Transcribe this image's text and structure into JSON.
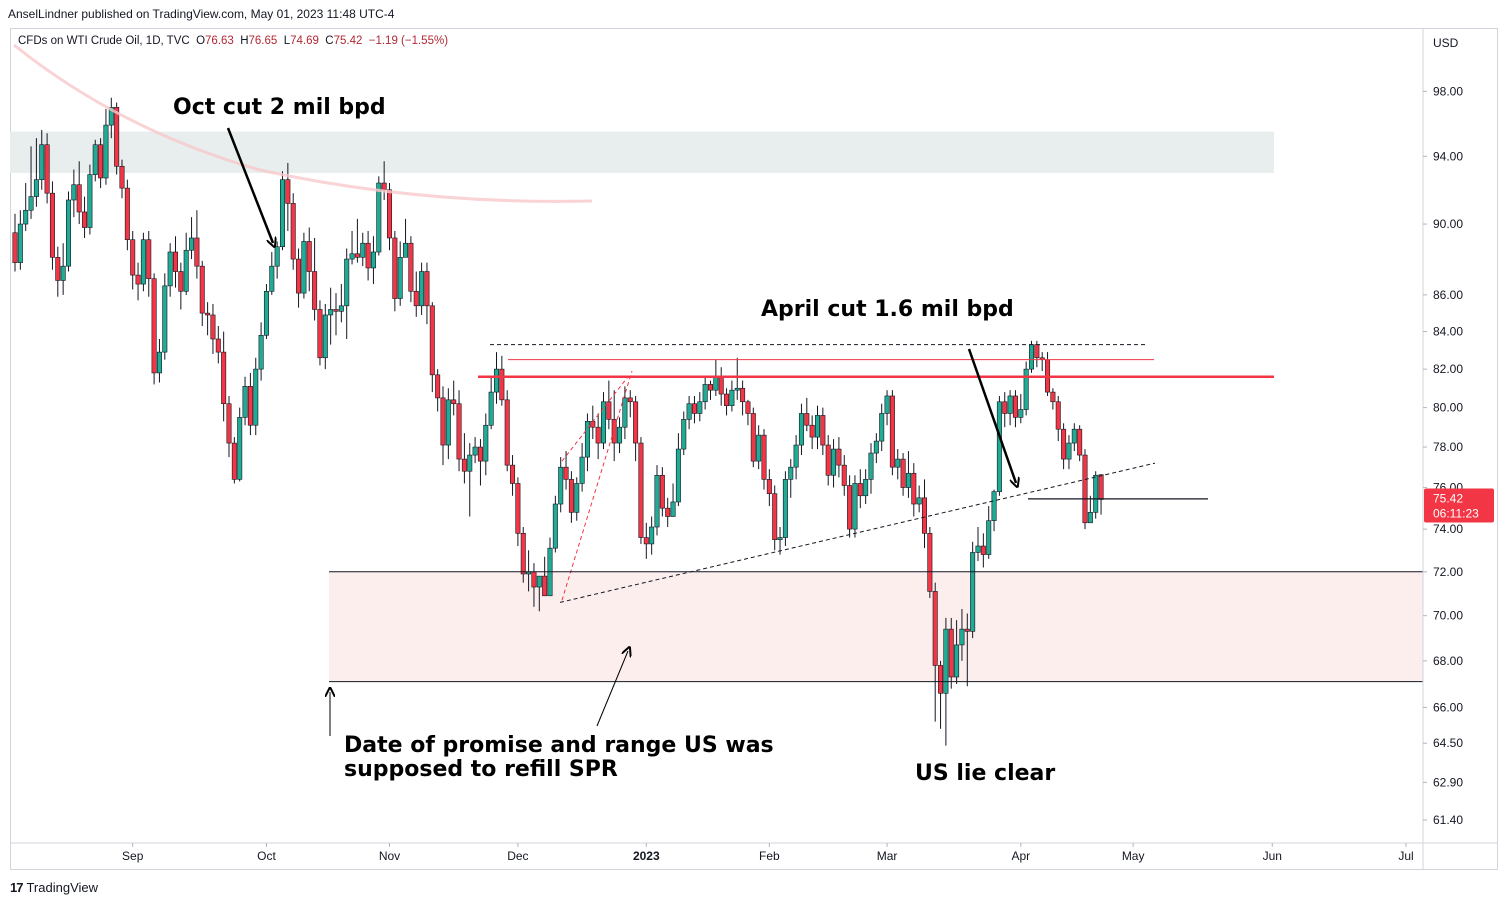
{
  "publisher": "AnselLindner published on TradingView.com, May 01, 2023 11:48 UTC-4",
  "legend": {
    "symbol": "CFDs on WTI Crude Oil, 1D, TVC",
    "open_label": "O",
    "open": "76.63",
    "high_label": "H",
    "high": "76.65",
    "low_label": "L",
    "low": "74.69",
    "close_label": "C",
    "close": "75.42",
    "change": "−1.19 (−1.55%)"
  },
  "footer": {
    "logo": "17",
    "brand": "TradingView"
  },
  "colors": {
    "up": "#22ab94",
    "down": "#f23645",
    "resistance": "#f23645",
    "supply_zone": "#e8eeee",
    "demand_zone": "#fdeeee"
  },
  "chart_data": {
    "type": "candlestick",
    "currency": "USD",
    "scale": "log",
    "price_ticks": [
      "98.00",
      "94.00",
      "90.00",
      "86.00",
      "84.00",
      "82.00",
      "80.00",
      "78.00",
      "76.00",
      "74.00",
      "72.00",
      "70.00",
      "68.00",
      "66.00",
      "64.50",
      "62.90",
      "61.40"
    ],
    "time_ticks": [
      "Sep",
      "Oct",
      "Nov",
      "Dec",
      "2023",
      "Feb",
      "Mar",
      "Apr",
      "May",
      "Jun",
      "Jul"
    ],
    "last_price": {
      "value": "75.42",
      "countdown": "06:11:23"
    },
    "ylim": [
      60.5,
      102
    ],
    "candles": [
      [
        89.5,
        87.8,
        90.6,
        87.3
      ],
      [
        87.8,
        90.0,
        90.8,
        87.4
      ],
      [
        90.0,
        90.8,
        92.4,
        89.6
      ],
      [
        90.8,
        91.6,
        94.6,
        90.3
      ],
      [
        91.6,
        92.6,
        95.1,
        91.0
      ],
      [
        92.6,
        94.7,
        95.6,
        92.0
      ],
      [
        94.7,
        91.8,
        95.4,
        91.2
      ],
      [
        91.8,
        88.1,
        92.5,
        87.4
      ],
      [
        88.1,
        86.8,
        88.7,
        85.9
      ],
      [
        86.8,
        87.6,
        88.9,
        86.0
      ],
      [
        87.6,
        91.4,
        91.9,
        87.3
      ],
      [
        91.4,
        92.3,
        93.2,
        90.4
      ],
      [
        92.3,
        90.7,
        93.7,
        90.0
      ],
      [
        90.7,
        89.8,
        91.6,
        89.2
      ],
      [
        89.8,
        92.9,
        93.5,
        89.4
      ],
      [
        92.9,
        94.7,
        95.0,
        92.5
      ],
      [
        94.7,
        92.7,
        95.1,
        92.1
      ],
      [
        92.7,
        95.9,
        96.9,
        92.3
      ],
      [
        95.9,
        97.0,
        97.6,
        95.1
      ],
      [
        97.0,
        93.4,
        97.3,
        92.9
      ],
      [
        93.4,
        92.1,
        93.8,
        91.5
      ],
      [
        92.1,
        89.1,
        92.6,
        88.5
      ],
      [
        89.1,
        87.1,
        89.6,
        86.3
      ],
      [
        87.1,
        86.6,
        87.8,
        85.7
      ],
      [
        86.6,
        89.1,
        89.5,
        86.2
      ],
      [
        89.1,
        86.9,
        89.6,
        85.9
      ],
      [
        86.9,
        81.8,
        87.2,
        81.2
      ],
      [
        81.8,
        82.9,
        83.6,
        81.3
      ],
      [
        82.9,
        86.5,
        87.2,
        82.5
      ],
      [
        86.5,
        88.4,
        88.9,
        85.9
      ],
      [
        88.4,
        87.3,
        89.3,
        86.4
      ],
      [
        87.3,
        86.2,
        87.8,
        85.2
      ],
      [
        86.2,
        88.5,
        89.5,
        86.0
      ],
      [
        88.5,
        89.2,
        90.4,
        88.0
      ],
      [
        89.2,
        87.6,
        90.8,
        86.9
      ],
      [
        87.6,
        85.0,
        87.9,
        84.3
      ],
      [
        85.0,
        84.9,
        85.6,
        83.8
      ],
      [
        84.9,
        83.6,
        85.5,
        82.8
      ],
      [
        83.6,
        82.9,
        84.3,
        82.3
      ],
      [
        82.9,
        80.2,
        84.0,
        79.3
      ],
      [
        80.2,
        78.2,
        80.6,
        77.5
      ],
      [
        78.2,
        76.4,
        78.5,
        76.2
      ],
      [
        76.4,
        79.5,
        80.0,
        76.3
      ],
      [
        79.5,
        81.1,
        81.6,
        79.1
      ],
      [
        81.1,
        79.1,
        81.8,
        78.6
      ],
      [
        79.1,
        82.0,
        82.6,
        78.6
      ],
      [
        82.0,
        83.8,
        84.5,
        81.4
      ],
      [
        83.8,
        86.2,
        86.6,
        83.6
      ],
      [
        86.2,
        87.6,
        88.4,
        86.0
      ],
      [
        87.6,
        88.7,
        89.0,
        86.9
      ],
      [
        88.7,
        92.6,
        93.1,
        88.5
      ],
      [
        92.6,
        91.2,
        93.6,
        89.6
      ],
      [
        91.2,
        88.0,
        91.8,
        87.4
      ],
      [
        88.0,
        86.1,
        88.6,
        85.3
      ],
      [
        86.1,
        89.0,
        89.5,
        85.8
      ],
      [
        89.0,
        87.3,
        89.8,
        86.2
      ],
      [
        87.3,
        85.2,
        89.2,
        84.6
      ],
      [
        85.2,
        82.6,
        85.7,
        82.2
      ],
      [
        82.6,
        84.9,
        85.5,
        82.0
      ],
      [
        84.9,
        85.2,
        86.4,
        83.3
      ],
      [
        85.2,
        85.1,
        86.1,
        83.8
      ],
      [
        85.1,
        85.4,
        86.6,
        84.5
      ],
      [
        85.4,
        88.0,
        88.6,
        83.6
      ],
      [
        88.0,
        88.3,
        89.6,
        87.7
      ],
      [
        88.3,
        88.1,
        90.3,
        87.8
      ],
      [
        88.1,
        88.9,
        89.5,
        87.6
      ],
      [
        88.9,
        87.5,
        89.6,
        86.8
      ],
      [
        87.5,
        88.4,
        89.3,
        86.6
      ],
      [
        88.4,
        92.4,
        92.8,
        88.2
      ],
      [
        92.4,
        92.0,
        93.7,
        91.4
      ],
      [
        92.0,
        89.2,
        92.4,
        88.5
      ],
      [
        89.2,
        85.8,
        89.6,
        85.1
      ],
      [
        85.8,
        88.1,
        89.0,
        85.4
      ],
      [
        88.1,
        88.9,
        90.3,
        88.1
      ],
      [
        88.9,
        86.2,
        89.3,
        85.6
      ],
      [
        86.2,
        85.4,
        87.3,
        84.8
      ],
      [
        85.4,
        87.3,
        87.8,
        84.9
      ],
      [
        87.3,
        85.4,
        87.8,
        84.4
      ],
      [
        85.4,
        81.7,
        85.6,
        80.8
      ],
      [
        81.7,
        80.5,
        82.0,
        79.8
      ],
      [
        80.5,
        78.1,
        81.1,
        77.1
      ],
      [
        78.1,
        80.4,
        81.0,
        77.4
      ],
      [
        80.4,
        80.2,
        81.4,
        79.6
      ],
      [
        80.2,
        77.4,
        80.9,
        76.8
      ],
      [
        77.4,
        76.8,
        78.7,
        76.2
      ],
      [
        76.8,
        77.6,
        78.2,
        74.6
      ],
      [
        77.6,
        78.0,
        78.5,
        77.2
      ],
      [
        78.0,
        77.3,
        78.4,
        76.1
      ],
      [
        77.3,
        79.1,
        79.7,
        76.6
      ],
      [
        79.1,
        80.8,
        81.6,
        78.9
      ],
      [
        80.8,
        82.0,
        82.9,
        80.2
      ],
      [
        82.0,
        80.4,
        82.7,
        80.1
      ],
      [
        80.4,
        77.1,
        80.9,
        76.8
      ],
      [
        77.1,
        76.2,
        77.6,
        75.6
      ],
      [
        76.2,
        73.8,
        76.5,
        73.2
      ],
      [
        73.8,
        71.9,
        74.1,
        71.5
      ],
      [
        71.9,
        72.0,
        73.0,
        71.1
      ],
      [
        72.0,
        71.3,
        72.4,
        70.4
      ],
      [
        71.3,
        71.8,
        71.8,
        70.2
      ],
      [
        71.8,
        70.9,
        72.7,
        70.9
      ],
      [
        70.9,
        73.1,
        73.6,
        71.1
      ],
      [
        73.1,
        75.2,
        75.6,
        72.9
      ],
      [
        75.2,
        77.0,
        77.5,
        74.8
      ],
      [
        77.0,
        76.4,
        77.8,
        75.9
      ],
      [
        76.4,
        74.8,
        76.8,
        74.3
      ],
      [
        74.8,
        76.2,
        76.5,
        74.4
      ],
      [
        76.2,
        77.5,
        78.2,
        75.8
      ],
      [
        77.5,
        79.3,
        79.7,
        76.8
      ],
      [
        79.3,
        79.0,
        80.1,
        78.4
      ],
      [
        79.0,
        78.2,
        79.7,
        77.4
      ],
      [
        78.2,
        80.3,
        80.8,
        77.9
      ],
      [
        80.3,
        79.4,
        81.4,
        78.9
      ],
      [
        79.4,
        78.2,
        80.9,
        77.3
      ],
      [
        78.2,
        79.0,
        79.5,
        77.7
      ],
      [
        79.0,
        80.5,
        81.1,
        78.4
      ],
      [
        80.5,
        80.3,
        80.9,
        79.5
      ],
      [
        80.3,
        78.2,
        80.6,
        77.3
      ],
      [
        78.2,
        73.6,
        78.5,
        73.3
      ],
      [
        73.6,
        73.3,
        74.3,
        72.6
      ],
      [
        73.3,
        74.1,
        74.6,
        72.8
      ],
      [
        74.1,
        76.6,
        77.1,
        73.7
      ],
      [
        76.6,
        75.0,
        77.0,
        74.6
      ],
      [
        75.0,
        74.6,
        75.5,
        74.1
      ],
      [
        74.6,
        75.3,
        76.2,
        74.6
      ],
      [
        75.3,
        77.9,
        78.7,
        75.1
      ],
      [
        77.9,
        79.4,
        79.8,
        77.6
      ],
      [
        79.4,
        80.2,
        80.6,
        78.9
      ],
      [
        80.2,
        79.7,
        80.6,
        79.2
      ],
      [
        79.7,
        80.3,
        80.8,
        79.3
      ],
      [
        80.3,
        81.2,
        81.6,
        79.9
      ],
      [
        81.2,
        80.9,
        81.4,
        80.4
      ],
      [
        80.9,
        81.6,
        82.5,
        80.6
      ],
      [
        81.6,
        80.7,
        82.1,
        80.1
      ],
      [
        80.7,
        80.1,
        81.0,
        79.6
      ],
      [
        80.1,
        80.9,
        81.4,
        79.8
      ],
      [
        80.9,
        81.0,
        82.6,
        80.4
      ],
      [
        81.0,
        80.3,
        81.4,
        79.6
      ],
      [
        80.3,
        79.7,
        80.4,
        79.1
      ],
      [
        79.7,
        77.3,
        80.0,
        77.0
      ],
      [
        77.3,
        78.6,
        79.1,
        76.9
      ],
      [
        78.6,
        76.4,
        78.9,
        75.9
      ],
      [
        76.4,
        75.7,
        76.9,
        75.1
      ],
      [
        75.7,
        73.5,
        76.1,
        73.0
      ],
      [
        73.5,
        73.6,
        74.1,
        72.8
      ],
      [
        73.6,
        76.4,
        76.8,
        73.2
      ],
      [
        76.4,
        77.0,
        77.4,
        75.5
      ],
      [
        77.0,
        78.1,
        78.6,
        76.4
      ],
      [
        78.1,
        79.7,
        80.2,
        77.6
      ],
      [
        79.7,
        79.1,
        80.5,
        78.8
      ],
      [
        79.1,
        78.5,
        79.6,
        77.9
      ],
      [
        78.5,
        79.6,
        80.1,
        77.9
      ],
      [
        79.6,
        78.1,
        80.0,
        77.6
      ],
      [
        78.1,
        76.6,
        78.6,
        76.1
      ],
      [
        76.6,
        77.9,
        78.4,
        76.0
      ],
      [
        77.9,
        77.1,
        78.5,
        76.5
      ],
      [
        77.1,
        76.1,
        77.6,
        75.6
      ],
      [
        76.1,
        74.0,
        76.6,
        73.6
      ],
      [
        74.0,
        76.2,
        76.6,
        73.6
      ],
      [
        76.2,
        75.6,
        76.9,
        75.0
      ],
      [
        75.6,
        76.4,
        76.9,
        75.2
      ],
      [
        76.4,
        77.7,
        78.2,
        75.7
      ],
      [
        77.7,
        78.3,
        78.7,
        77.2
      ],
      [
        78.3,
        79.7,
        80.2,
        77.8
      ],
      [
        79.7,
        80.6,
        80.9,
        79.1
      ],
      [
        80.6,
        77.0,
        80.9,
        76.6
      ],
      [
        77.0,
        77.4,
        77.9,
        76.4
      ],
      [
        77.4,
        76.0,
        77.7,
        75.6
      ],
      [
        76.0,
        76.7,
        77.8,
        75.5
      ],
      [
        76.7,
        75.2,
        77.2,
        74.6
      ],
      [
        75.2,
        75.5,
        76.1,
        74.8
      ],
      [
        75.5,
        73.8,
        76.4,
        73.1
      ],
      [
        73.8,
        71.1,
        74.1,
        70.8
      ],
      [
        71.1,
        67.8,
        71.5,
        65.4
      ],
      [
        67.8,
        66.6,
        68.0,
        65.1
      ],
      [
        66.6,
        69.4,
        69.9,
        64.4
      ],
      [
        69.4,
        67.3,
        69.9,
        66.8
      ],
      [
        67.3,
        68.7,
        69.8,
        67.0
      ],
      [
        68.7,
        69.4,
        70.3,
        68.0
      ],
      [
        69.4,
        69.3,
        70.1,
        66.9
      ],
      [
        69.3,
        72.9,
        73.4,
        69.0
      ],
      [
        72.9,
        73.2,
        74.1,
        72.5
      ],
      [
        73.2,
        72.8,
        73.8,
        72.2
      ],
      [
        72.8,
        74.4,
        75.1,
        72.6
      ],
      [
        74.4,
        75.8,
        75.9,
        73.9
      ],
      [
        75.8,
        80.3,
        80.6,
        75.6
      ],
      [
        80.3,
        79.7,
        80.8,
        79.0
      ],
      [
        79.7,
        80.6,
        80.9,
        79.1
      ],
      [
        80.6,
        79.5,
        80.9,
        79.0
      ],
      [
        79.5,
        79.9,
        80.7,
        79.2
      ],
      [
        79.9,
        82.0,
        82.4,
        79.6
      ],
      [
        82.0,
        83.3,
        83.5,
        81.8
      ],
      [
        83.3,
        82.6,
        83.5,
        82.1
      ],
      [
        82.6,
        82.5,
        82.9,
        81.9
      ],
      [
        82.5,
        80.8,
        82.9,
        80.6
      ],
      [
        80.8,
        80.3,
        81.0,
        79.9
      ],
      [
        80.3,
        78.9,
        80.6,
        78.3
      ],
      [
        78.9,
        77.4,
        79.2,
        76.9
      ],
      [
        77.4,
        78.2,
        78.6,
        76.9
      ],
      [
        78.2,
        78.9,
        79.2,
        77.8
      ],
      [
        78.9,
        77.6,
        79.1,
        77.3
      ],
      [
        77.6,
        74.3,
        77.9,
        74.0
      ],
      [
        74.3,
        74.8,
        75.6,
        74.3
      ],
      [
        74.8,
        76.6,
        76.8,
        74.5
      ],
      [
        76.63,
        75.42,
        76.65,
        74.69
      ]
    ]
  },
  "annotations": {
    "oct_cut": "Oct cut 2 mil bpd",
    "april_cut": "April cut 1.6 mil bpd",
    "promise_line1": "Date of promise and range US was",
    "promise_line2": "supposed to refill SPR",
    "lie": "US lie clear"
  }
}
